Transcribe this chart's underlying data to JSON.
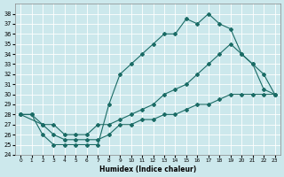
{
  "xlabel": "Humidex (Indice chaleur)",
  "bg_color": "#cce8ec",
  "line_color": "#1a6b65",
  "grid_color": "#b8d8dc",
  "xlim": [
    -0.5,
    23.5
  ],
  "ylim": [
    24,
    39
  ],
  "yticks": [
    24,
    25,
    26,
    27,
    28,
    29,
    30,
    31,
    32,
    33,
    34,
    35,
    36,
    37,
    38
  ],
  "xticks": [
    0,
    1,
    2,
    3,
    4,
    5,
    6,
    7,
    8,
    9,
    10,
    11,
    12,
    13,
    14,
    15,
    16,
    17,
    18,
    19,
    20,
    21,
    22,
    23
  ],
  "curve_top_x": [
    0,
    1,
    2,
    3,
    4,
    5,
    6,
    7,
    8,
    9,
    10,
    11,
    12,
    13,
    14,
    15,
    16,
    17,
    18,
    19,
    20,
    21,
    22,
    23
  ],
  "curve_top_y": [
    28,
    28,
    26,
    25,
    25,
    25,
    25,
    25,
    29,
    32,
    33,
    34,
    35,
    36,
    36,
    37.5,
    37,
    38,
    37,
    36.5,
    34,
    33,
    30.5,
    30
  ],
  "curve_mid_x": [
    0,
    1,
    2,
    3,
    4,
    5,
    6,
    7,
    8,
    9,
    10,
    11,
    12,
    13,
    14,
    15,
    16,
    17,
    18,
    19,
    20,
    21,
    22,
    23
  ],
  "curve_mid_y": [
    28,
    28,
    27,
    27,
    26,
    26,
    26,
    27,
    27,
    27.5,
    28,
    28.5,
    29,
    30,
    30.5,
    31,
    32,
    33,
    34,
    35,
    34,
    33,
    32,
    30
  ],
  "curve_bot_x": [
    0,
    2,
    3,
    4,
    5,
    6,
    7,
    8,
    9,
    10,
    11,
    12,
    13,
    14,
    15,
    16,
    17,
    18,
    19,
    20,
    21,
    22,
    23
  ],
  "curve_bot_y": [
    28,
    27,
    26,
    25.5,
    25.5,
    25.5,
    25.5,
    26,
    27,
    27,
    27.5,
    27.5,
    28,
    28,
    28.5,
    29,
    29,
    29.5,
    30,
    30,
    30,
    30,
    30
  ]
}
